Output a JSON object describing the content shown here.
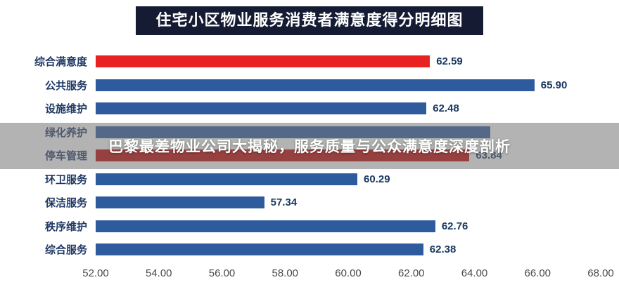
{
  "title": "住宅小区物业服务消费者满意度得分明细图",
  "overlay": {
    "text": "巴黎最差物业公司大揭秘，服务质量与公众满意度深度剖析"
  },
  "chart_data": {
    "type": "bar",
    "orientation": "horizontal",
    "title": "住宅小区物业服务消费者满意度得分明细图",
    "categories": [
      "综合满意度",
      "公共服务",
      "设施维护",
      "绿化养护",
      "停车管理",
      "环卫服务",
      "保洁服务",
      "秩序维护",
      "综合服务"
    ],
    "values": [
      62.59,
      65.9,
      62.48,
      64.5,
      63.84,
      60.29,
      57.34,
      62.76,
      62.38
    ],
    "value_labels": [
      "62.59",
      "65.90",
      "62.48",
      "",
      "63.84",
      "60.29",
      "57.34",
      "62.76",
      "62.38"
    ],
    "colors": [
      "#e82121",
      "#2e5b9e",
      "#2e5b9e",
      "#2e5b9e",
      "#c00000",
      "#2e5b9e",
      "#2e5b9e",
      "#2e5b9e",
      "#2e5b9e"
    ],
    "accent_red": "#e82121",
    "bar_blue": "#2e5b9e",
    "xlim": [
      52,
      68
    ],
    "xticks": [
      "52.00",
      "54.00",
      "56.00",
      "58.00",
      "60.00",
      "62.00",
      "64.00",
      "66.00",
      "68.00"
    ],
    "xlabel": "",
    "ylabel": "",
    "grid": false,
    "legend": false,
    "values_hidden_by_banner": [
      "绿化养护"
    ]
  }
}
